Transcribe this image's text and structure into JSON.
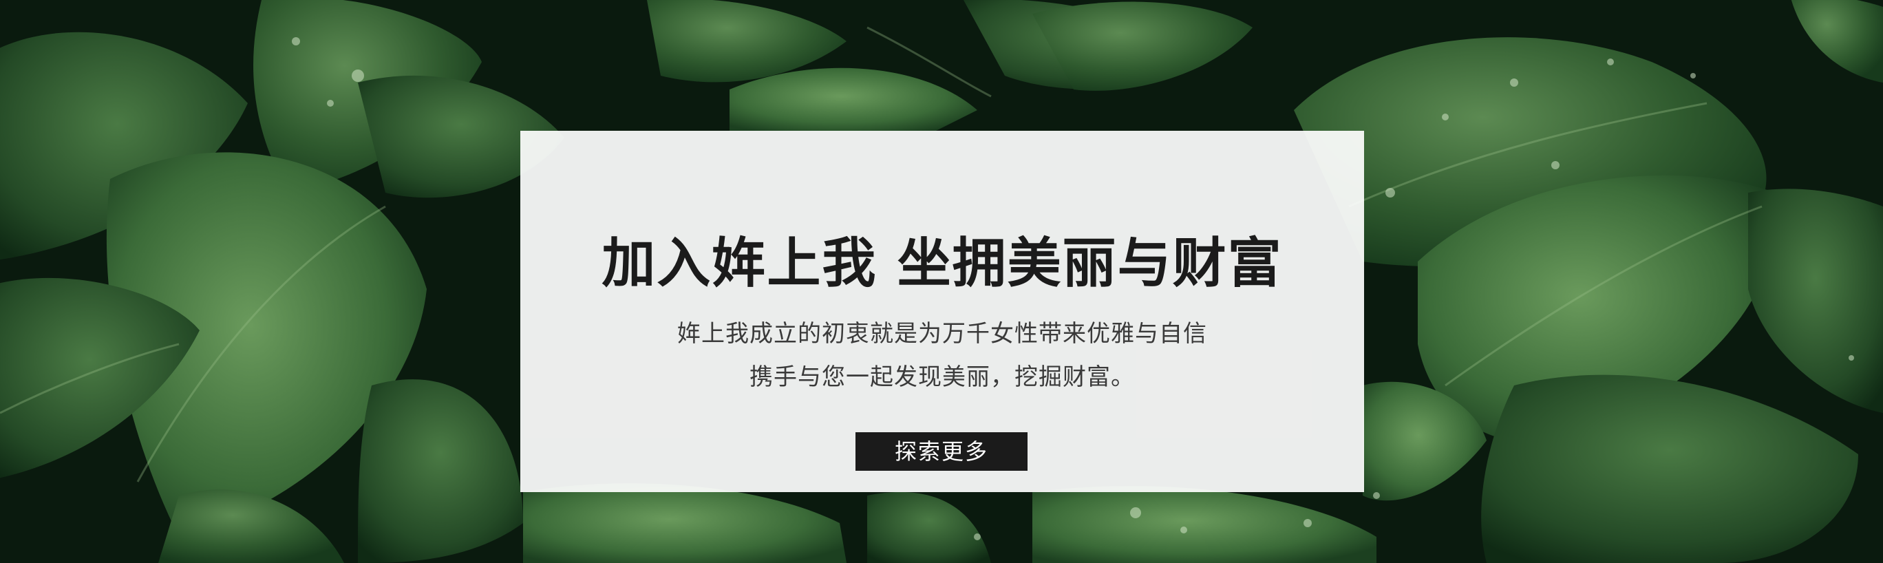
{
  "hero": {
    "title": "加入姩上我 坐拥美丽与财富",
    "line1": "姩上我成立的初衷就是为万千女性带来优雅与自信",
    "line2": "携手与您一起发现美丽，挖掘财富。",
    "cta_label": "探索更多"
  },
  "colors": {
    "leaf_dark": "#10301a",
    "leaf_mid": "#2e5c30",
    "leaf_light": "#4f7f48",
    "card_bg": "#f5f5f5",
    "cta_bg": "#1b1b1b"
  }
}
